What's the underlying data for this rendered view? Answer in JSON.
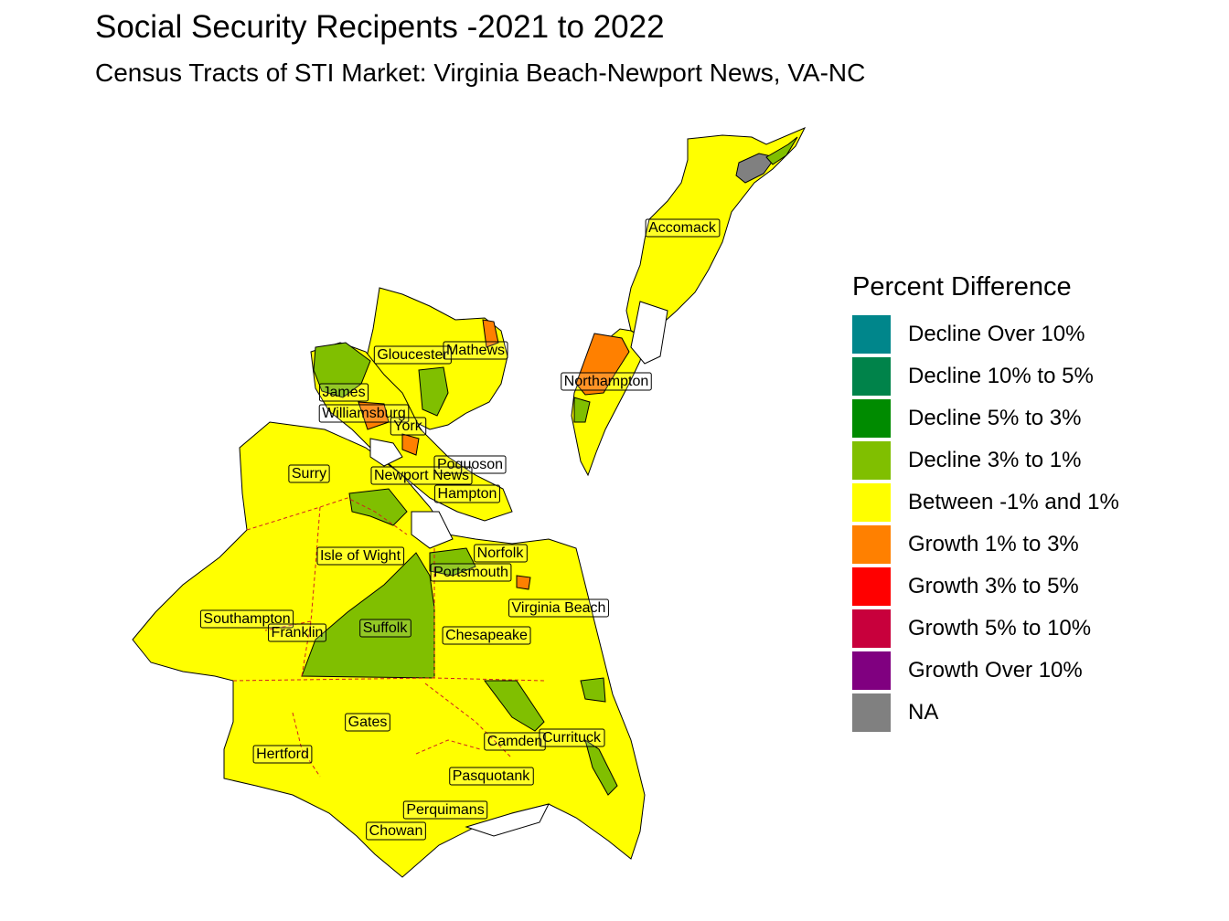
{
  "title": "Social Security Recipents -2021 to 2022",
  "subtitle": "Census Tracts of STI Market: Virginia Beach-Newport News, VA-NC",
  "legend": {
    "title": "Percent Difference",
    "items": [
      {
        "label": "Decline Over 10%",
        "color": "#00868B"
      },
      {
        "label": "Decline 10% to 5%",
        "color": "#00834A"
      },
      {
        "label": "Decline 5% to 3%",
        "color": "#008B00"
      },
      {
        "label": "Decline 3% to 1%",
        "color": "#80BF00"
      },
      {
        "label": "Between -1% and 1%",
        "color": "#FFFF00"
      },
      {
        "label": "Growth 1% to 3%",
        "color": "#FF8000"
      },
      {
        "label": "Growth 3% to 5%",
        "color": "#FF0000"
      },
      {
        "label": "Growth 5% to 10%",
        "color": "#C8003C"
      },
      {
        "label": "Growth Over 10%",
        "color": "#800080"
      },
      {
        "label": "NA",
        "color": "#808080"
      }
    ]
  },
  "counties": [
    "Accomack",
    "Northampton",
    "Gloucester",
    "Mathews",
    "James",
    "Williamsburg",
    "York",
    "Poquoson",
    "Surry",
    "Newport News",
    "Hampton",
    "Isle of Wight",
    "Norfolk",
    "Portsmouth",
    "Virginia Beach",
    "Southampton",
    "Franklin",
    "Suffolk",
    "Chesapeake",
    "Gates",
    "Camden",
    "Currituck",
    "Hertford",
    "Pasquotank",
    "Perquimans",
    "Chowan"
  ]
}
